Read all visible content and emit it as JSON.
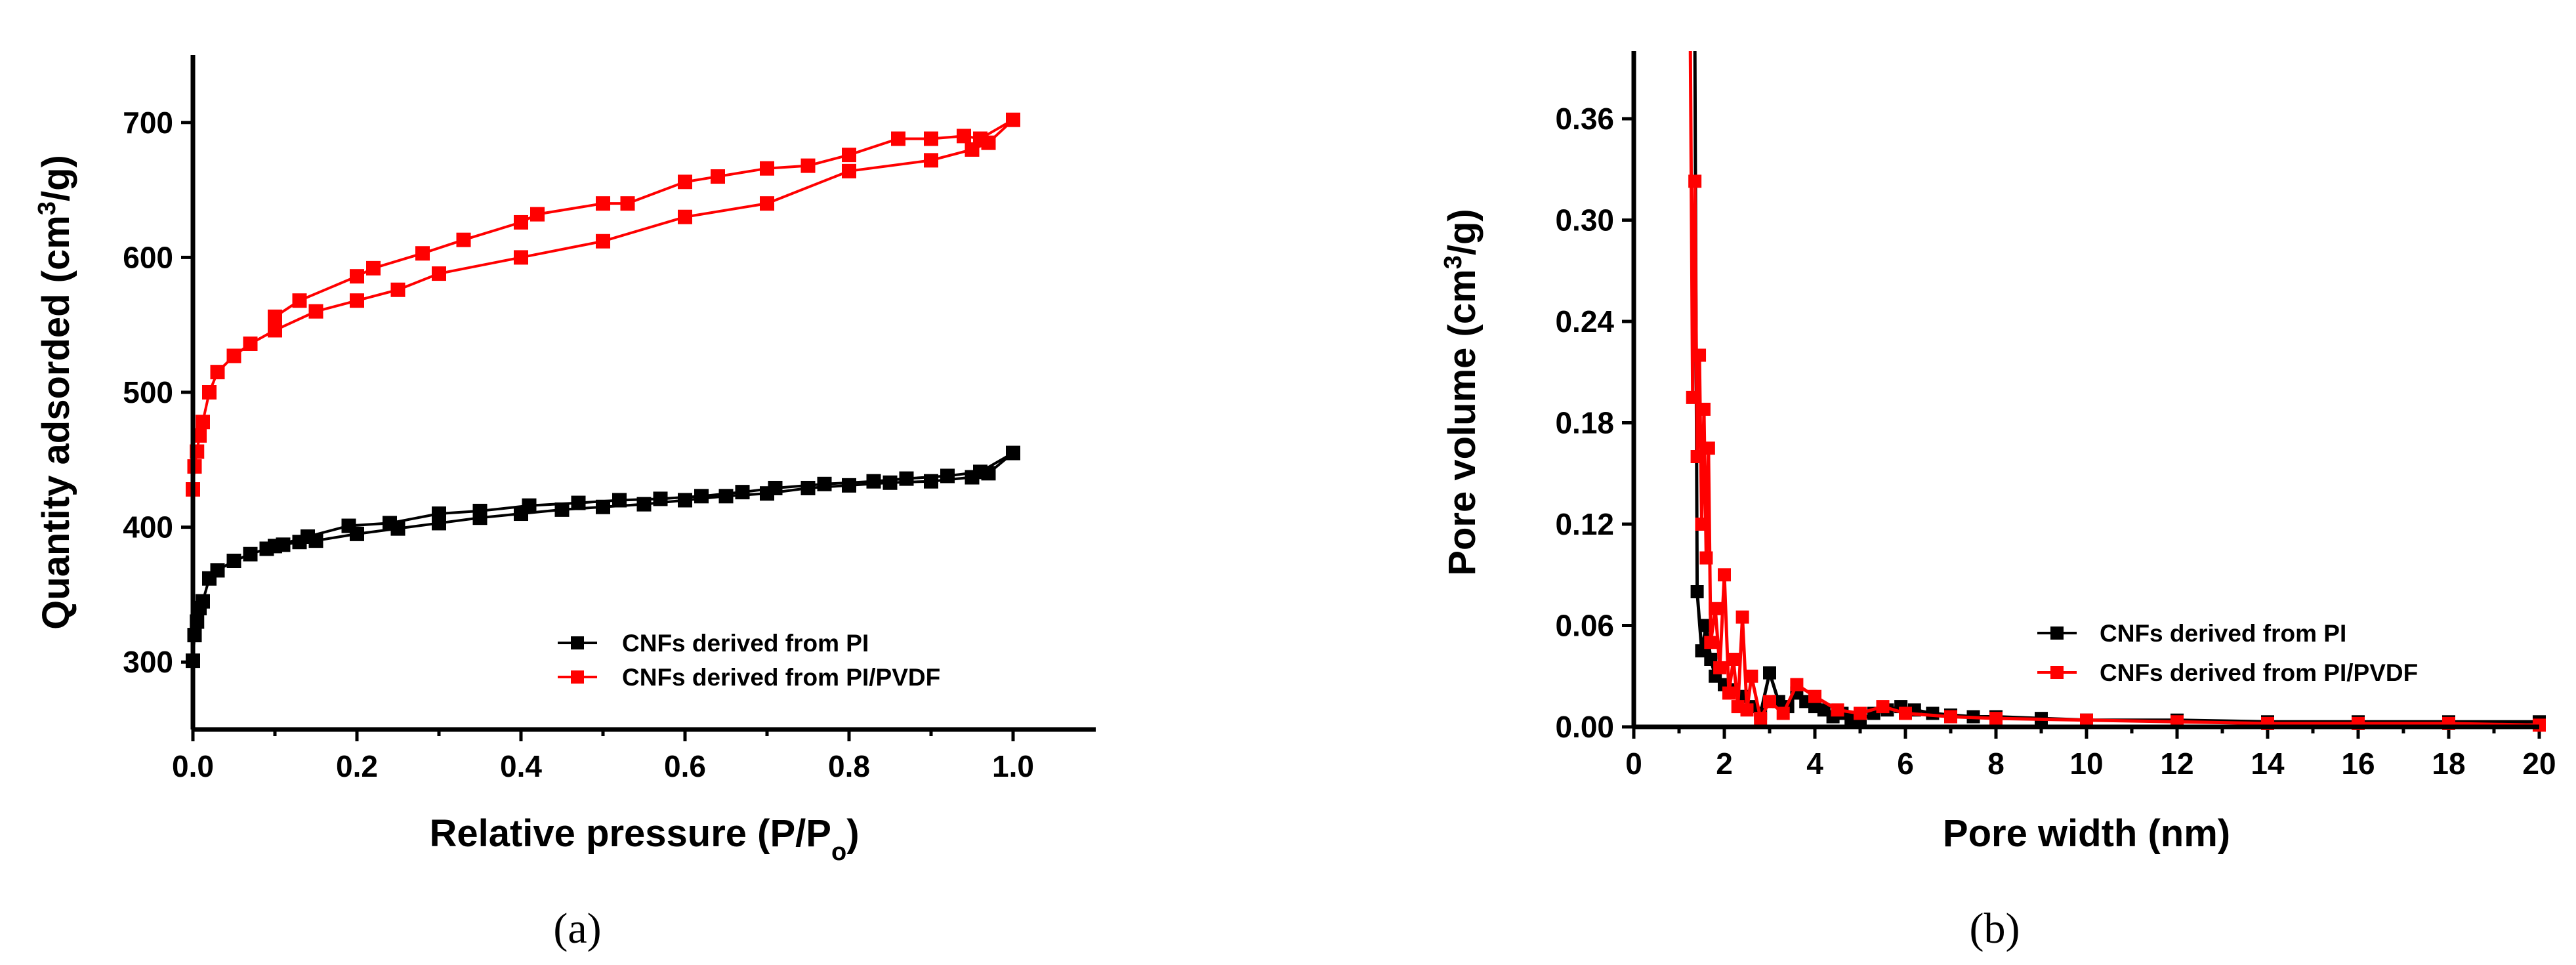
{
  "chart_data": [
    {
      "type": "scatter",
      "panel_label": "(a)",
      "xlabel": "Relative pressure (P/P",
      "xlabel_sub": "o",
      "xlabel_end": ")",
      "ylabel": "Quantity adsorded (cm",
      "ylabel_sup": "3",
      "ylabel_end": "/g)",
      "xlim": [
        0,
        1.1
      ],
      "ylim": [
        250,
        750
      ],
      "xticks": [
        0.0,
        0.2,
        0.4,
        0.6,
        0.8,
        1.0
      ],
      "xtick_labels": [
        "0.0",
        "0.2",
        "0.4",
        "0.6",
        "0.8",
        "1.0"
      ],
      "yticks": [
        300,
        400,
        500,
        600,
        700
      ],
      "ytick_labels": [
        "300",
        "400",
        "500",
        "600",
        "700"
      ],
      "legend_position": "lower-right",
      "series": [
        {
          "name": "CNFs derived from PI",
          "color": "#000000",
          "marker": "square",
          "x": [
            0.0,
            0.002,
            0.005,
            0.008,
            0.012,
            0.02,
            0.03,
            0.05,
            0.07,
            0.09,
            0.11,
            0.13,
            0.15,
            0.2,
            0.25,
            0.3,
            0.35,
            0.4,
            0.45,
            0.5,
            0.55,
            0.6,
            0.65,
            0.7,
            0.75,
            0.8,
            0.85,
            0.9,
            0.95,
            0.97,
            1.0,
            0.96,
            0.92,
            0.87,
            0.83,
            0.77,
            0.71,
            0.67,
            0.62,
            0.57,
            0.52,
            0.47,
            0.41,
            0.35,
            0.3,
            0.24,
            0.19,
            0.14,
            0.1
          ],
          "y": [
            301,
            320,
            330,
            340,
            345,
            362,
            368,
            375,
            380,
            384,
            387,
            389,
            390,
            395,
            399,
            403,
            407,
            410,
            413,
            415,
            417,
            420,
            423,
            425,
            429,
            431,
            433,
            434,
            437,
            440,
            455,
            441,
            438,
            436,
            434,
            432,
            429,
            426,
            423,
            421,
            420,
            418,
            416,
            412,
            410,
            403,
            401,
            393,
            386
          ]
        },
        {
          "name": "CNFs derived from PI/PVDF",
          "color": "#ff0000",
          "marker": "square",
          "x": [
            0.0,
            0.002,
            0.005,
            0.008,
            0.012,
            0.02,
            0.03,
            0.05,
            0.07,
            0.1,
            0.15,
            0.2,
            0.25,
            0.3,
            0.4,
            0.5,
            0.6,
            0.7,
            0.8,
            0.9,
            0.95,
            0.97,
            1.0,
            0.96,
            0.94,
            0.9,
            0.86,
            0.8,
            0.75,
            0.7,
            0.64,
            0.6,
            0.53,
            0.5,
            0.42,
            0.4,
            0.33,
            0.28,
            0.22,
            0.2,
            0.13,
            0.1
          ],
          "y": [
            428,
            445,
            456,
            468,
            478,
            500,
            515,
            527,
            536,
            546,
            560,
            568,
            576,
            588,
            600,
            612,
            630,
            640,
            664,
            672,
            680,
            685,
            702,
            688,
            690,
            688,
            688,
            676,
            668,
            666,
            660,
            656,
            640,
            640,
            632,
            626,
            613,
            603,
            592,
            586,
            568,
            556
          ]
        }
      ]
    },
    {
      "type": "line",
      "panel_label": "(b)",
      "xlabel": "Pore width (nm)",
      "ylabel": "Pore volume (cm",
      "ylabel_sup": "3",
      "ylabel_end": "/g)",
      "xlim": [
        0,
        20
      ],
      "ylim": [
        0,
        0.4
      ],
      "xticks": [
        0,
        2,
        4,
        6,
        8,
        10,
        12,
        14,
        16,
        18,
        20
      ],
      "xtick_labels": [
        "0",
        "2",
        "4",
        "6",
        "8",
        "10",
        "12",
        "14",
        "16",
        "18",
        "20"
      ],
      "yticks": [
        0.0,
        0.06,
        0.12,
        0.18,
        0.24,
        0.3,
        0.36
      ],
      "ytick_labels": [
        "0.00",
        "0.06",
        "0.12",
        "0.18",
        "0.24",
        "0.30",
        "0.36"
      ],
      "legend_position": "lower-right",
      "series": [
        {
          "name": "CNFs derived from PI",
          "color": "#000000",
          "marker": "square",
          "x": [
            1.35,
            1.4,
            1.5,
            1.6,
            1.7,
            1.8,
            2.0,
            2.2,
            2.4,
            2.6,
            2.8,
            3.0,
            3.2,
            3.4,
            3.6,
            3.8,
            4.0,
            4.2,
            4.4,
            4.6,
            4.8,
            5.0,
            5.3,
            5.6,
            5.9,
            6.2,
            6.6,
            7.0,
            7.5,
            8.0,
            9.0,
            10.0,
            12.0,
            14.0,
            16.0,
            18.0,
            20.0
          ],
          "y": [
            0.4,
            0.08,
            0.045,
            0.06,
            0.04,
            0.03,
            0.025,
            0.022,
            0.018,
            0.012,
            0.008,
            0.032,
            0.015,
            0.012,
            0.02,
            0.015,
            0.012,
            0.01,
            0.006,
            0.008,
            0.005,
            0.004,
            0.008,
            0.01,
            0.012,
            0.01,
            0.008,
            0.007,
            0.006,
            0.006,
            0.005,
            0.004,
            0.004,
            0.003,
            0.003,
            0.003,
            0.003
          ]
        },
        {
          "name": "CNFs derived from PI/PVDF",
          "color": "#ff0000",
          "marker": "square",
          "x": [
            1.25,
            1.3,
            1.35,
            1.4,
            1.45,
            1.5,
            1.55,
            1.6,
            1.65,
            1.7,
            1.8,
            1.9,
            2.0,
            2.1,
            2.2,
            2.3,
            2.4,
            2.5,
            2.6,
            2.8,
            3.0,
            3.3,
            3.6,
            4.0,
            4.5,
            5.0,
            5.5,
            6.0,
            7.0,
            8.0,
            10.0,
            12.0,
            14.0,
            16.0,
            18.0,
            20.0
          ],
          "y": [
            0.4,
            0.195,
            0.323,
            0.16,
            0.22,
            0.12,
            0.188,
            0.1,
            0.165,
            0.05,
            0.07,
            0.035,
            0.09,
            0.02,
            0.04,
            0.012,
            0.065,
            0.01,
            0.03,
            0.005,
            0.015,
            0.008,
            0.025,
            0.018,
            0.01,
            0.008,
            0.012,
            0.008,
            0.006,
            0.005,
            0.004,
            0.003,
            0.002,
            0.002,
            0.002,
            0.001
          ]
        }
      ]
    }
  ]
}
